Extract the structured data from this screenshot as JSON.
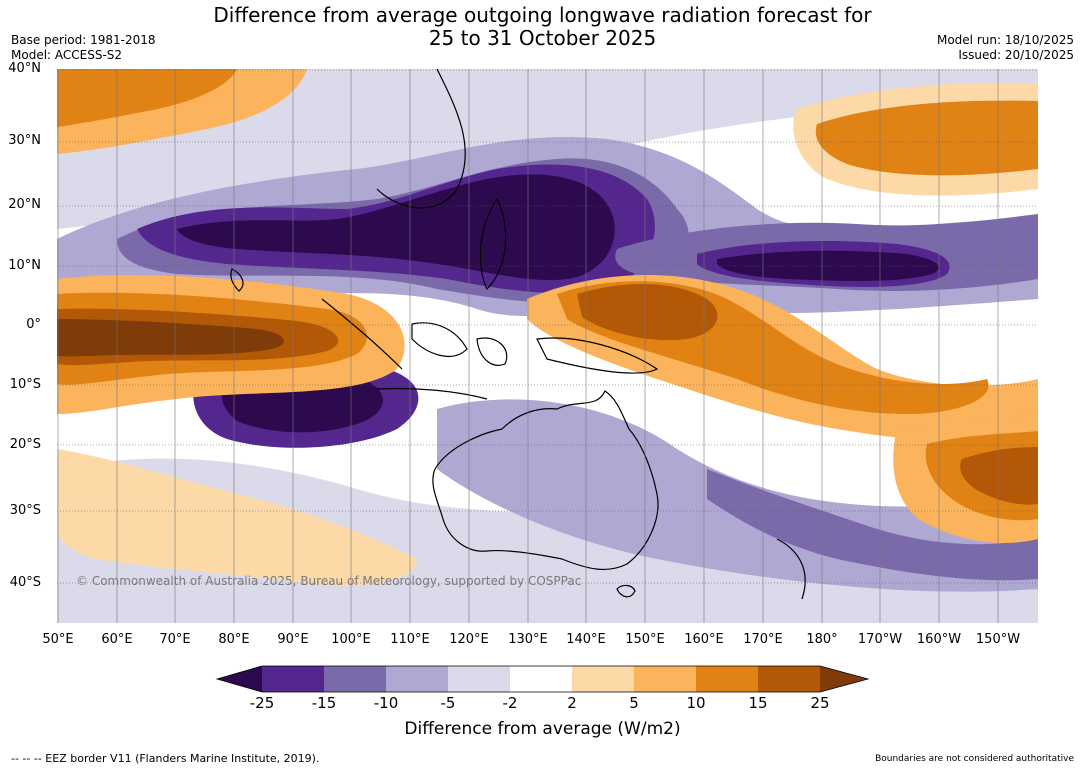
{
  "title": {
    "line1": "Difference from average outgoing longwave radiation forecast for",
    "line2": "25 to 31 October 2025"
  },
  "meta_left": {
    "base_period": "Base period: 1981-2018",
    "model": "Model: ACCESS-S2"
  },
  "meta_right": {
    "model_run": "Model run: 18/10/2025",
    "issued": "Issued: 20/10/2025"
  },
  "map": {
    "credit": "© Commonwealth of Australia 2025, Bureau of Meteorology, supported by COSPPac",
    "lat_labels": [
      "40°N",
      "30°N",
      "20°N",
      "10°N",
      "0°",
      "10°S",
      "20°S",
      "30°S",
      "40°S"
    ],
    "lon_labels": [
      "50°E",
      "60°E",
      "70°E",
      "80°E",
      "90°E",
      "100°E",
      "110°E",
      "120°E",
      "130°E",
      "140°E",
      "150°E",
      "160°E",
      "170°E",
      "180°",
      "170°W",
      "160°W",
      "150°W"
    ]
  },
  "legend": {
    "title": "Difference from average (W/m2)",
    "ticks": [
      "-25",
      "-15",
      "-10",
      "-5",
      "-2",
      "2",
      "5",
      "10",
      "15",
      "25"
    ],
    "colors": [
      "#2d0a4e",
      "#54278f",
      "#7b6aaa",
      "#afa8d2",
      "#dadaeb",
      "#ffffff",
      "#fdd9a8",
      "#fbb35c",
      "#e08214",
      "#b35806",
      "#7f3b08"
    ]
  },
  "footer": {
    "left": "--  --  -- EEZ border V11 (Flanders Marine Institute, 2019).",
    "right": "Boundaries are not considered authoritative"
  }
}
